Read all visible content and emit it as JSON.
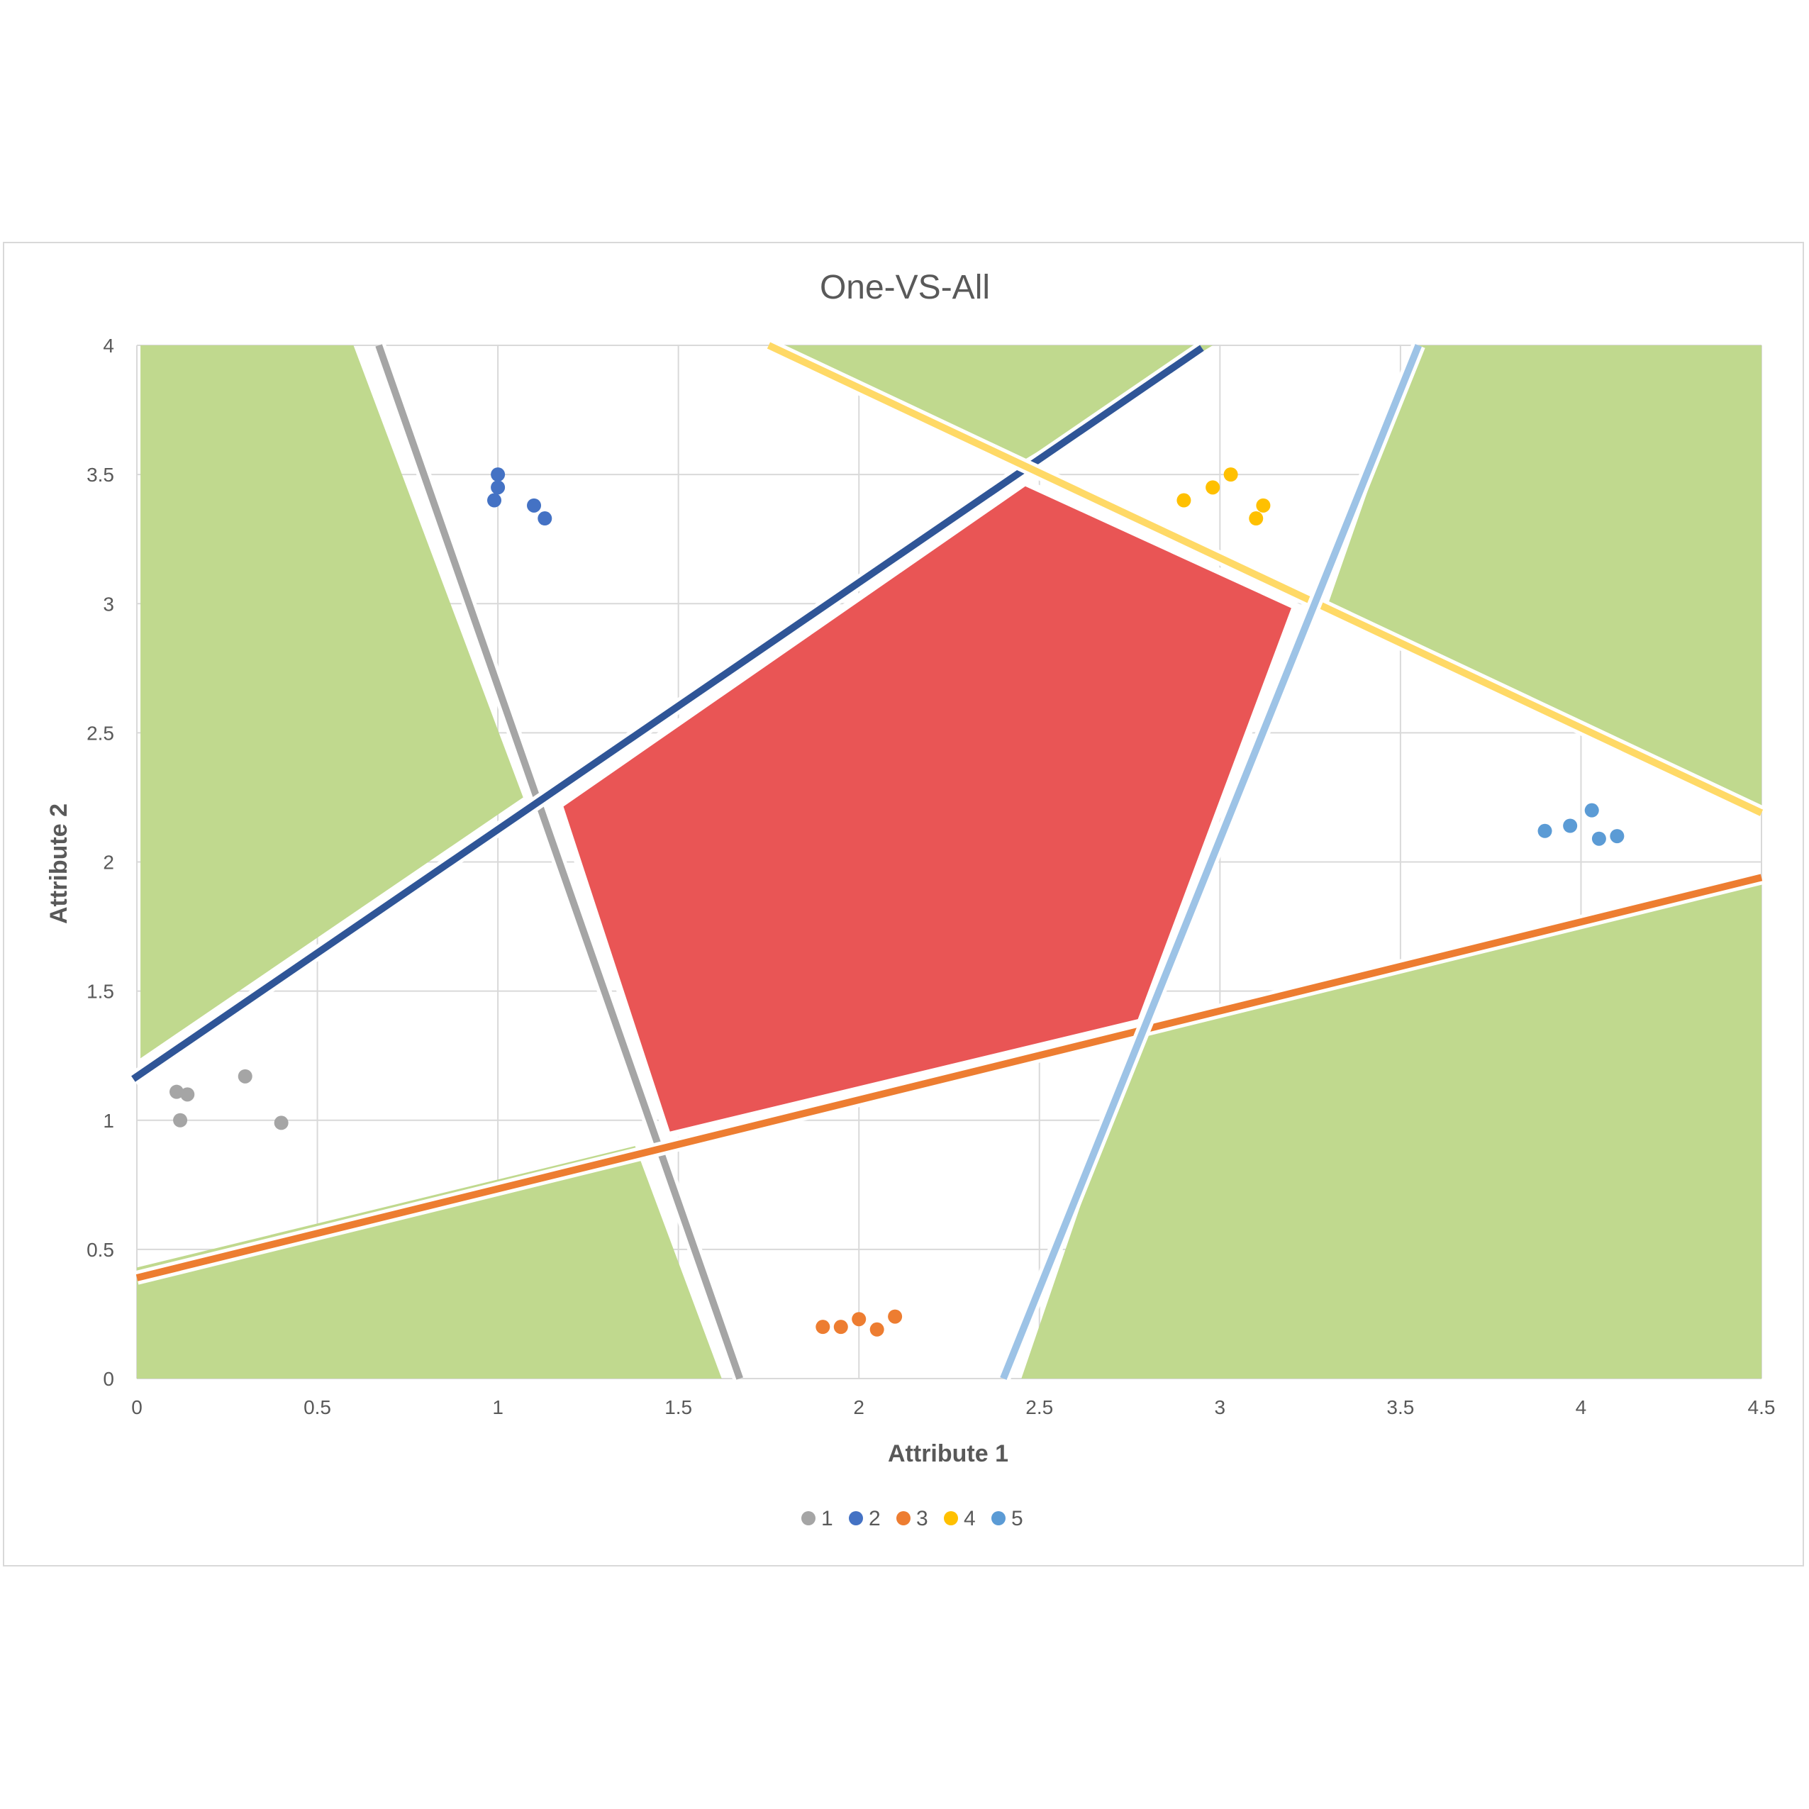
{
  "chart_data": {
    "type": "scatter",
    "title": "One-VS-All",
    "xlabel": "Attribute 1",
    "ylabel": "Attribute 2",
    "xlim": [
      0,
      4.5
    ],
    "ylim": [
      0,
      4
    ],
    "xticks": [
      "0",
      "0.5",
      "1",
      "1.5",
      "2",
      "2.5",
      "3",
      "3.5",
      "4",
      "4.5"
    ],
    "yticks": [
      "0",
      "0.5",
      "1",
      "1.5",
      "2",
      "2.5",
      "3",
      "3.5",
      "4"
    ],
    "grid": true,
    "legend_position": "bottom",
    "series": [
      {
        "name": "1",
        "color": "#A5A5A5",
        "points": [
          [
            0.11,
            1.11
          ],
          [
            0.14,
            1.1
          ],
          [
            0.12,
            1.0
          ],
          [
            0.3,
            1.17
          ],
          [
            0.4,
            0.99
          ]
        ]
      },
      {
        "name": "2",
        "color": "#4472C4",
        "points": [
          [
            1.0,
            3.5
          ],
          [
            1.0,
            3.45
          ],
          [
            0.99,
            3.4
          ],
          [
            1.1,
            3.38
          ],
          [
            1.13,
            3.33
          ]
        ]
      },
      {
        "name": "3",
        "color": "#ED7D31",
        "points": [
          [
            1.9,
            0.2
          ],
          [
            1.95,
            0.2
          ],
          [
            2.0,
            0.23
          ],
          [
            2.05,
            0.19
          ],
          [
            2.1,
            0.24
          ]
        ]
      },
      {
        "name": "4",
        "color": "#FFC000",
        "points": [
          [
            2.9,
            3.4
          ],
          [
            2.98,
            3.45
          ],
          [
            3.03,
            3.5
          ],
          [
            3.1,
            3.33
          ],
          [
            3.12,
            3.38
          ]
        ]
      },
      {
        "name": "5",
        "color": "#5B9BD5",
        "points": [
          [
            3.9,
            2.12
          ],
          [
            3.97,
            2.14
          ],
          [
            4.03,
            2.2
          ],
          [
            4.05,
            2.09
          ],
          [
            4.1,
            2.1
          ]
        ]
      }
    ],
    "decision_lines": [
      {
        "class": "1",
        "color": "#A5A5A5",
        "from": [
          0.67,
          4.0
        ],
        "to": [
          1.67,
          0.0
        ]
      },
      {
        "class": "2",
        "color": "#2F5597",
        "from": [
          -0.01,
          1.16
        ],
        "to": [
          2.95,
          3.99
        ]
      },
      {
        "class": "3",
        "color": "#ED7D31",
        "from": [
          0.0,
          0.39
        ],
        "to": [
          4.5,
          1.94
        ]
      },
      {
        "class": "4",
        "color": "#FFD966",
        "from": [
          1.75,
          4.0
        ],
        "to": [
          4.5,
          2.19
        ]
      },
      {
        "class": "5",
        "color": "#9DC3E6",
        "from": [
          2.4,
          0.0
        ],
        "to": [
          3.55,
          4.0
        ]
      }
    ],
    "ambiguous_regions": {
      "color": "#C0D98E",
      "polygons": [
        [
          [
            0.01,
            4.0
          ],
          [
            0.6,
            4.0
          ],
          [
            1.07,
            2.25
          ],
          [
            0.01,
            1.24
          ]
        ],
        [
          [
            1.75,
            4.0
          ],
          [
            2.98,
            4.0
          ],
          [
            2.45,
            3.55
          ]
        ],
        [
          [
            3.55,
            4.0
          ],
          [
            4.5,
            4.0
          ],
          [
            4.5,
            2.22
          ],
          [
            3.3,
            3.0
          ]
        ],
        [
          [
            0.0,
            0.0
          ],
          [
            1.62,
            0.0
          ],
          [
            1.38,
            0.9
          ],
          [
            0.0,
            0.43
          ]
        ],
        [
          [
            2.45,
            0.0
          ],
          [
            4.5,
            0.0
          ],
          [
            4.5,
            1.92
          ],
          [
            2.78,
            1.35
          ]
        ]
      ]
    },
    "unclassified_region": {
      "color": "#E95555",
      "polygon": [
        [
          1.17,
          2.22
        ],
        [
          2.46,
          3.47
        ],
        [
          3.21,
          2.99
        ],
        [
          2.78,
          1.38
        ],
        [
          1.47,
          0.94
        ]
      ]
    }
  }
}
